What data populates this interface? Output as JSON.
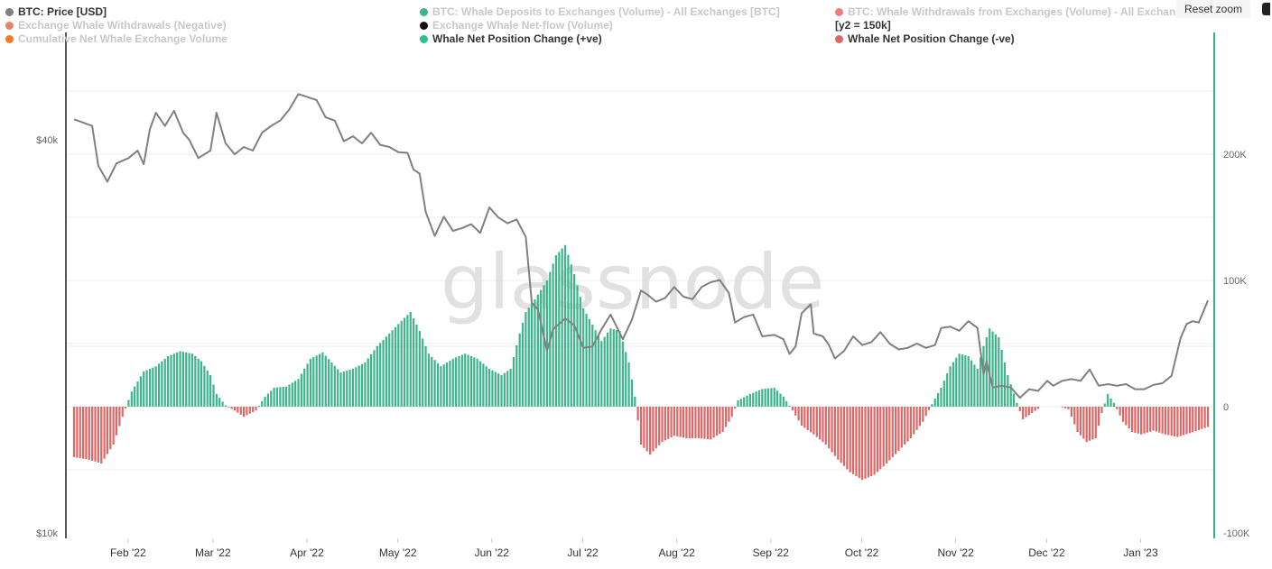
{
  "toolbar": {
    "reset_zoom_label": "Reset zoom",
    "menu_icon": "menu-icon"
  },
  "watermark": "glassnode",
  "colors": {
    "price_line": "#808080",
    "positive_bar": "#3cb58b",
    "negative_bar": "#e06666",
    "right_axis": "#2bb38a",
    "left_axis": "#555555"
  },
  "legend": [
    {
      "label": "BTC: Price [USD]",
      "color": "#808080",
      "state": "active"
    },
    {
      "label": "BTC: Whale Deposits to Exchanges (Volume) - All Exchanges [BTC]",
      "color": "#3cb58b",
      "state": "muted"
    },
    {
      "label": "BTC: Whale Withdrawals from Exchanges (Volume) - All Exchan",
      "color": "#f07c7c",
      "state": "muted"
    },
    {
      "label": "Exchange Whale Withdrawals (Negative)",
      "color": "#e0876a",
      "state": "muted"
    },
    {
      "label": "Exchange Whale Net-flow (Volume)",
      "color": "#111111",
      "state": "muted"
    },
    {
      "label": "[y2 = 150k]",
      "color": "",
      "state": "active"
    },
    {
      "label": "Cumulative Net Whale Exchange Volume",
      "color": "#f07b27",
      "state": "muted"
    },
    {
      "label": "Whale Net Position Change (+ve)",
      "color": "#2bbf8a",
      "state": "active"
    },
    {
      "label": "Whale Net Position Change (-ve)",
      "color": "#e06666",
      "state": "active"
    }
  ],
  "chart_data": {
    "type": "line+bar",
    "x_tick_labels": [
      "Feb '22",
      "Mar '22",
      "Apr '22",
      "May '22",
      "Jun '22",
      "Jul '22",
      "Aug '22",
      "Sep '22",
      "Oct '22",
      "Nov '22",
      "Dec '22",
      "Jan '23"
    ],
    "x_range": [
      "2022-01-13",
      "2023-01-22"
    ],
    "y_left": {
      "scale": "log",
      "range": [
        10000,
        50000
      ],
      "tick_labels": [
        "$10k",
        "$40k"
      ],
      "tick_values": [
        10000,
        40000
      ]
    },
    "y_right": {
      "scale": "linear",
      "range": [
        -100000,
        300000
      ],
      "tick_labels": [
        "-100K",
        "0",
        "100K",
        "200K"
      ],
      "tick_values": [
        -100000,
        0,
        100000,
        200000
      ]
    },
    "grid": true,
    "price_series": {
      "name": "BTC: Price [USD]",
      "points": [
        [
          "2022-01-13",
          43000
        ],
        [
          "2022-01-16",
          42500
        ],
        [
          "2022-01-19",
          42000
        ],
        [
          "2022-01-21",
          36500
        ],
        [
          "2022-01-24",
          34500
        ],
        [
          "2022-01-27",
          36800
        ],
        [
          "2022-01-31",
          37500
        ],
        [
          "2022-02-03",
          38500
        ],
        [
          "2022-02-05",
          36700
        ],
        [
          "2022-02-07",
          41500
        ],
        [
          "2022-02-09",
          44000
        ],
        [
          "2022-02-12",
          42000
        ],
        [
          "2022-02-15",
          44300
        ],
        [
          "2022-02-18",
          41000
        ],
        [
          "2022-02-20",
          40000
        ],
        [
          "2022-02-23",
          37500
        ],
        [
          "2022-02-27",
          38500
        ],
        [
          "2022-03-01",
          44000
        ],
        [
          "2022-03-04",
          39500
        ],
        [
          "2022-03-07",
          38000
        ],
        [
          "2022-03-10",
          39000
        ],
        [
          "2022-03-13",
          38500
        ],
        [
          "2022-03-16",
          41000
        ],
        [
          "2022-03-19",
          42000
        ],
        [
          "2022-03-22",
          42800
        ],
        [
          "2022-03-25",
          44500
        ],
        [
          "2022-03-28",
          47000
        ],
        [
          "2022-03-31",
          46500
        ],
        [
          "2022-04-03",
          46000
        ],
        [
          "2022-04-06",
          43300
        ],
        [
          "2022-04-09",
          42800
        ],
        [
          "2022-04-12",
          39800
        ],
        [
          "2022-04-15",
          40500
        ],
        [
          "2022-04-18",
          39500
        ],
        [
          "2022-04-21",
          41000
        ],
        [
          "2022-04-24",
          39300
        ],
        [
          "2022-04-27",
          39000
        ],
        [
          "2022-04-30",
          38300
        ],
        [
          "2022-05-03",
          38200
        ],
        [
          "2022-05-05",
          36000
        ],
        [
          "2022-05-07",
          35500
        ],
        [
          "2022-05-09",
          31000
        ],
        [
          "2022-05-12",
          28500
        ],
        [
          "2022-05-15",
          30500
        ],
        [
          "2022-05-18",
          29000
        ],
        [
          "2022-05-21",
          29300
        ],
        [
          "2022-05-24",
          29700
        ],
        [
          "2022-05-27",
          28800
        ],
        [
          "2022-05-30",
          31500
        ],
        [
          "2022-06-02",
          30400
        ],
        [
          "2022-06-05",
          29800
        ],
        [
          "2022-06-08",
          30200
        ],
        [
          "2022-06-11",
          28400
        ],
        [
          "2022-06-13",
          22500
        ],
        [
          "2022-06-15",
          22000
        ],
        [
          "2022-06-18",
          19000
        ],
        [
          "2022-06-20",
          20500
        ],
        [
          "2022-06-24",
          21300
        ],
        [
          "2022-06-27",
          20800
        ],
        [
          "2022-06-30",
          19200
        ],
        [
          "2022-07-03",
          19300
        ],
        [
          "2022-07-06",
          20500
        ],
        [
          "2022-07-09",
          21600
        ],
        [
          "2022-07-13",
          19800
        ],
        [
          "2022-07-16",
          21200
        ],
        [
          "2022-07-19",
          23500
        ],
        [
          "2022-07-21",
          23200
        ],
        [
          "2022-07-24",
          22600
        ],
        [
          "2022-07-27",
          22900
        ],
        [
          "2022-07-30",
          23800
        ],
        [
          "2022-08-02",
          23000
        ],
        [
          "2022-08-05",
          22800
        ],
        [
          "2022-08-08",
          23800
        ],
        [
          "2022-08-11",
          24200
        ],
        [
          "2022-08-14",
          24400
        ],
        [
          "2022-08-17",
          23300
        ],
        [
          "2022-08-19",
          21000
        ],
        [
          "2022-08-22",
          21400
        ],
        [
          "2022-08-25",
          21600
        ],
        [
          "2022-08-28",
          20000
        ],
        [
          "2022-09-01",
          20100
        ],
        [
          "2022-09-04",
          19800
        ],
        [
          "2022-09-06",
          18800
        ],
        [
          "2022-09-08",
          19300
        ],
        [
          "2022-09-10",
          21700
        ],
        [
          "2022-09-13",
          22400
        ],
        [
          "2022-09-14",
          20200
        ],
        [
          "2022-09-17",
          20000
        ],
        [
          "2022-09-19",
          19400
        ],
        [
          "2022-09-21",
          18500
        ],
        [
          "2022-09-24",
          19000
        ],
        [
          "2022-09-27",
          20000
        ],
        [
          "2022-09-30",
          19400
        ],
        [
          "2022-10-03",
          19600
        ],
        [
          "2022-10-06",
          20300
        ],
        [
          "2022-10-09",
          19500
        ],
        [
          "2022-10-12",
          19100
        ],
        [
          "2022-10-15",
          19200
        ],
        [
          "2022-10-18",
          19500
        ],
        [
          "2022-10-21",
          19200
        ],
        [
          "2022-10-24",
          19400
        ],
        [
          "2022-10-26",
          20600
        ],
        [
          "2022-10-29",
          20700
        ],
        [
          "2022-11-01",
          20400
        ],
        [
          "2022-11-04",
          21100
        ],
        [
          "2022-11-07",
          20600
        ],
        [
          "2022-11-09",
          17500
        ],
        [
          "2022-11-10",
          18300
        ],
        [
          "2022-11-12",
          16700
        ],
        [
          "2022-11-15",
          16800
        ],
        [
          "2022-11-18",
          16700
        ],
        [
          "2022-11-21",
          16100
        ],
        [
          "2022-11-24",
          16600
        ],
        [
          "2022-11-27",
          16500
        ],
        [
          "2022-11-30",
          17100
        ],
        [
          "2022-12-02",
          16800
        ],
        [
          "2022-12-05",
          17100
        ],
        [
          "2022-12-08",
          17200
        ],
        [
          "2022-12-11",
          17100
        ],
        [
          "2022-12-14",
          17800
        ],
        [
          "2022-12-17",
          16800
        ],
        [
          "2022-12-20",
          16900
        ],
        [
          "2022-12-23",
          16800
        ],
        [
          "2022-12-26",
          16900
        ],
        [
          "2022-12-29",
          16600
        ],
        [
          "2023-01-01",
          16600
        ],
        [
          "2023-01-04",
          16850
        ],
        [
          "2023-01-07",
          16950
        ],
        [
          "2023-01-10",
          17400
        ],
        [
          "2023-01-13",
          19900
        ],
        [
          "2023-01-15",
          20900
        ],
        [
          "2023-01-17",
          21100
        ],
        [
          "2023-01-19",
          21000
        ],
        [
          "2023-01-22",
          22700
        ]
      ]
    },
    "net_position_series": {
      "positive_name": "Whale Net Position Change (+ve)",
      "negative_name": "Whale Net Position Change (-ve)",
      "points": [
        [
          "2022-01-13",
          -40000
        ],
        [
          "2022-01-18",
          -42000
        ],
        [
          "2022-01-22",
          -45000
        ],
        [
          "2022-01-26",
          -30000
        ],
        [
          "2022-01-29",
          -8000
        ],
        [
          "2022-02-01",
          12000
        ],
        [
          "2022-02-05",
          28000
        ],
        [
          "2022-02-09",
          32000
        ],
        [
          "2022-02-13",
          40000
        ],
        [
          "2022-02-17",
          44000
        ],
        [
          "2022-02-21",
          42000
        ],
        [
          "2022-02-24",
          36000
        ],
        [
          "2022-02-27",
          25000
        ],
        [
          "2022-03-01",
          10000
        ],
        [
          "2022-03-04",
          1000
        ],
        [
          "2022-03-07",
          -3000
        ],
        [
          "2022-03-10",
          -8000
        ],
        [
          "2022-03-14",
          -3000
        ],
        [
          "2022-03-17",
          8000
        ],
        [
          "2022-03-20",
          15000
        ],
        [
          "2022-03-24",
          16000
        ],
        [
          "2022-03-28",
          22000
        ],
        [
          "2022-04-01",
          38000
        ],
        [
          "2022-04-05",
          43000
        ],
        [
          "2022-04-08",
          35000
        ],
        [
          "2022-04-11",
          27000
        ],
        [
          "2022-04-15",
          30000
        ],
        [
          "2022-04-19",
          35000
        ],
        [
          "2022-04-23",
          48000
        ],
        [
          "2022-04-27",
          58000
        ],
        [
          "2022-05-01",
          68000
        ],
        [
          "2022-05-04",
          75000
        ],
        [
          "2022-05-07",
          60000
        ],
        [
          "2022-05-10",
          42000
        ],
        [
          "2022-05-14",
          32000
        ],
        [
          "2022-05-18",
          38000
        ],
        [
          "2022-05-22",
          42000
        ],
        [
          "2022-05-26",
          38000
        ],
        [
          "2022-05-30",
          30000
        ],
        [
          "2022-06-03",
          25000
        ],
        [
          "2022-06-06",
          30000
        ],
        [
          "2022-06-09",
          58000
        ],
        [
          "2022-06-11",
          75000
        ],
        [
          "2022-06-14",
          85000
        ],
        [
          "2022-06-18",
          100000
        ],
        [
          "2022-06-21",
          120000
        ],
        [
          "2022-06-24",
          128000
        ],
        [
          "2022-06-27",
          105000
        ],
        [
          "2022-06-30",
          78000
        ],
        [
          "2022-07-03",
          65000
        ],
        [
          "2022-07-06",
          52000
        ],
        [
          "2022-07-09",
          62000
        ],
        [
          "2022-07-12",
          60000
        ],
        [
          "2022-07-15",
          35000
        ],
        [
          "2022-07-17",
          8000
        ],
        [
          "2022-07-19",
          -30000
        ],
        [
          "2022-07-22",
          -38000
        ],
        [
          "2022-07-26",
          -28000
        ],
        [
          "2022-07-30",
          -23000
        ],
        [
          "2022-08-03",
          -25000
        ],
        [
          "2022-08-07",
          -25000
        ],
        [
          "2022-08-11",
          -26000
        ],
        [
          "2022-08-15",
          -20000
        ],
        [
          "2022-08-18",
          -8000
        ],
        [
          "2022-08-20",
          5000
        ],
        [
          "2022-08-24",
          10000
        ],
        [
          "2022-08-28",
          14000
        ],
        [
          "2022-09-01",
          15000
        ],
        [
          "2022-09-04",
          8000
        ],
        [
          "2022-09-07",
          -3000
        ],
        [
          "2022-09-10",
          -15000
        ],
        [
          "2022-09-14",
          -22000
        ],
        [
          "2022-09-18",
          -30000
        ],
        [
          "2022-09-22",
          -42000
        ],
        [
          "2022-09-26",
          -52000
        ],
        [
          "2022-09-30",
          -58000
        ],
        [
          "2022-10-04",
          -54000
        ],
        [
          "2022-10-08",
          -45000
        ],
        [
          "2022-10-12",
          -35000
        ],
        [
          "2022-10-16",
          -25000
        ],
        [
          "2022-10-20",
          -12000
        ],
        [
          "2022-10-23",
          2000
        ],
        [
          "2022-10-26",
          15000
        ],
        [
          "2022-10-29",
          32000
        ],
        [
          "2022-11-01",
          42000
        ],
        [
          "2022-11-04",
          40000
        ],
        [
          "2022-11-07",
          30000
        ],
        [
          "2022-11-09",
          48000
        ],
        [
          "2022-11-11",
          62000
        ],
        [
          "2022-11-14",
          55000
        ],
        [
          "2022-11-17",
          25000
        ],
        [
          "2022-11-20",
          3000
        ],
        [
          "2022-11-22",
          -10000
        ],
        [
          "2022-11-25",
          -5000
        ],
        [
          "2022-11-28",
          0
        ],
        [
          "2022-12-01",
          0
        ],
        [
          "2022-12-04",
          0
        ],
        [
          "2022-12-07",
          -2000
        ],
        [
          "2022-12-10",
          -20000
        ],
        [
          "2022-12-13",
          -28000
        ],
        [
          "2022-12-16",
          -25000
        ],
        [
          "2022-12-18",
          -5000
        ],
        [
          "2022-12-20",
          10000
        ],
        [
          "2022-12-22",
          3000
        ],
        [
          "2022-12-25",
          -12000
        ],
        [
          "2022-12-28",
          -20000
        ],
        [
          "2022-12-31",
          -22000
        ],
        [
          "2023-01-04",
          -19000
        ],
        [
          "2023-01-08",
          -22000
        ],
        [
          "2023-01-12",
          -24000
        ],
        [
          "2023-01-16",
          -21000
        ],
        [
          "2023-01-22",
          -16000
        ]
      ]
    }
  }
}
